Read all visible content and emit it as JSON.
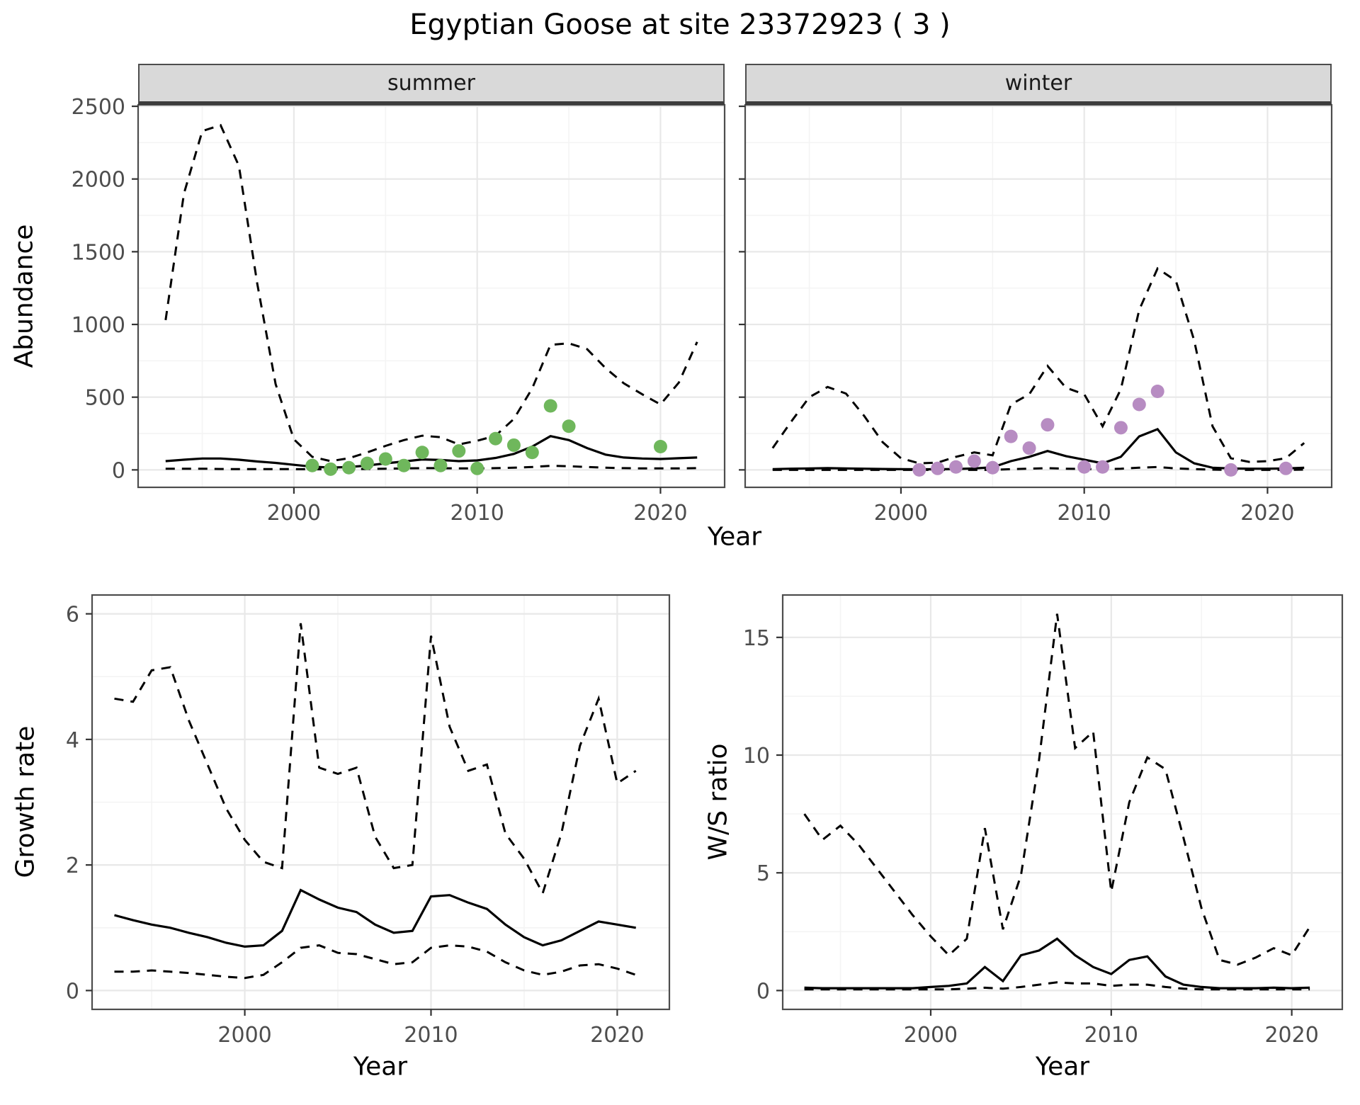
{
  "title": "Egyptian Goose at site 23372923 ( 3 )",
  "colors": {
    "summer_points": "#6fb75c",
    "winter_points": "#b78cc2",
    "line": "#000000",
    "strip_bg": "#d9d9d9",
    "panel_border": "#4d4d4d",
    "grid_major": "#e8e8e8",
    "grid_minor": "#f4f4f4",
    "axis_text": "#4d4d4d"
  },
  "chart_data": [
    {
      "id": "abundance",
      "type": "line",
      "ylabel": "Abundance",
      "xlabel": "Year",
      "xlim": [
        1991.5,
        2023.5
      ],
      "ylim": [
        -120,
        2510
      ],
      "xticks": [
        2000,
        2010,
        2020
      ],
      "yticks": [
        0,
        500,
        1000,
        1500,
        2000,
        2500
      ],
      "legend": "none",
      "facets": [
        {
          "label": "summer",
          "point_color_key": "summer_points",
          "years": [
            1993,
            1994,
            1995,
            1996,
            1997,
            1998,
            1999,
            2000,
            2001,
            2002,
            2003,
            2004,
            2005,
            2006,
            2007,
            2008,
            2009,
            2010,
            2011,
            2012,
            2013,
            2014,
            2015,
            2016,
            2017,
            2018,
            2019,
            2020,
            2021,
            2022
          ],
          "upper": [
            1030,
            1900,
            2330,
            2370,
            2090,
            1280,
            590,
            210,
            90,
            60,
            80,
            120,
            165,
            205,
            235,
            225,
            175,
            200,
            235,
            350,
            560,
            860,
            870,
            830,
            700,
            595,
            520,
            450,
            600,
            880
          ],
          "mean": [
            60,
            70,
            78,
            78,
            70,
            58,
            48,
            35,
            22,
            16,
            20,
            30,
            45,
            58,
            72,
            68,
            60,
            65,
            82,
            110,
            160,
            232,
            205,
            150,
            105,
            85,
            78,
            75,
            80,
            85
          ],
          "lower": [
            8,
            8,
            8,
            6,
            5,
            5,
            5,
            5,
            4,
            4,
            5,
            6,
            8,
            10,
            12,
            12,
            10,
            10,
            12,
            15,
            20,
            28,
            25,
            20,
            15,
            12,
            10,
            10,
            10,
            12
          ],
          "obs_years": [
            2001,
            2002,
            2003,
            2004,
            2005,
            2006,
            2007,
            2008,
            2009,
            2010,
            2011,
            2012,
            2013,
            2014,
            2015,
            2020
          ],
          "obs_values": [
            30,
            5,
            15,
            45,
            75,
            30,
            120,
            30,
            130,
            10,
            215,
            170,
            120,
            440,
            300,
            160
          ]
        },
        {
          "label": "winter",
          "point_color_key": "winter_points",
          "years": [
            1993,
            1994,
            1995,
            1996,
            1997,
            1998,
            1999,
            2000,
            2001,
            2002,
            2003,
            2004,
            2005,
            2006,
            2007,
            2008,
            2009,
            2010,
            2011,
            2012,
            2013,
            2014,
            2015,
            2016,
            2017,
            2018,
            2019,
            2020,
            2021,
            2022
          ],
          "upper": [
            150,
            330,
            500,
            570,
            525,
            370,
            190,
            80,
            45,
            50,
            90,
            120,
            100,
            450,
            520,
            715,
            565,
            520,
            300,
            555,
            1100,
            1385,
            1300,
            890,
            300,
            80,
            55,
            60,
            80,
            185
          ],
          "mean": [
            5,
            8,
            10,
            12,
            10,
            8,
            6,
            5,
            4,
            4,
            6,
            10,
            18,
            60,
            90,
            130,
            95,
            70,
            45,
            90,
            230,
            280,
            120,
            45,
            15,
            10,
            8,
            8,
            10,
            15
          ],
          "lower": [
            0,
            0,
            0,
            0,
            0,
            0,
            0,
            0,
            0,
            0,
            0,
            0,
            0,
            5,
            8,
            12,
            8,
            6,
            4,
            8,
            15,
            20,
            10,
            5,
            2,
            0,
            0,
            0,
            0,
            2
          ],
          "obs_years": [
            2001,
            2002,
            2003,
            2004,
            2005,
            2006,
            2007,
            2008,
            2010,
            2011,
            2012,
            2013,
            2014,
            2018,
            2021
          ],
          "obs_values": [
            0,
            10,
            20,
            60,
            15,
            230,
            150,
            310,
            20,
            20,
            290,
            450,
            540,
            0,
            10
          ]
        }
      ]
    },
    {
      "id": "growth_rate",
      "type": "line",
      "ylabel": "Growth rate",
      "xlabel": "Year",
      "xlim": [
        1991.8,
        2022.8
      ],
      "ylim": [
        -0.3,
        6.3
      ],
      "xticks": [
        2000,
        2010,
        2020
      ],
      "yticks": [
        0,
        2,
        4,
        6
      ],
      "years": [
        1993,
        1994,
        1995,
        1996,
        1997,
        1998,
        1999,
        2000,
        2001,
        2002,
        2003,
        2004,
        2005,
        2006,
        2007,
        2008,
        2009,
        2010,
        2011,
        2012,
        2013,
        2014,
        2015,
        2016,
        2017,
        2018,
        2019,
        2020,
        2021
      ],
      "upper": [
        4.65,
        4.6,
        5.1,
        5.15,
        4.3,
        3.6,
        2.9,
        2.4,
        2.05,
        1.95,
        5.85,
        3.55,
        3.45,
        3.55,
        2.45,
        1.95,
        2.0,
        5.65,
        4.2,
        3.5,
        3.6,
        2.5,
        2.1,
        1.55,
        2.5,
        3.9,
        4.65,
        3.3,
        3.5
      ],
      "mean": [
        1.2,
        1.12,
        1.05,
        1.0,
        0.92,
        0.85,
        0.76,
        0.7,
        0.72,
        0.95,
        1.6,
        1.45,
        1.32,
        1.25,
        1.05,
        0.92,
        0.95,
        1.5,
        1.52,
        1.4,
        1.3,
        1.05,
        0.85,
        0.72,
        0.8,
        0.95,
        1.1,
        1.05,
        1.0
      ],
      "lower": [
        0.3,
        0.3,
        0.32,
        0.3,
        0.28,
        0.25,
        0.22,
        0.2,
        0.25,
        0.45,
        0.68,
        0.72,
        0.6,
        0.58,
        0.5,
        0.42,
        0.45,
        0.68,
        0.72,
        0.7,
        0.62,
        0.45,
        0.32,
        0.25,
        0.3,
        0.4,
        0.42,
        0.35,
        0.25
      ]
    },
    {
      "id": "ws_ratio",
      "type": "line",
      "ylabel": "W/S ratio",
      "xlabel": "Year",
      "xlim": [
        1991.8,
        2022.8
      ],
      "ylim": [
        -0.8,
        16.8
      ],
      "xticks": [
        2000,
        2010,
        2020
      ],
      "yticks": [
        0,
        5,
        10,
        15
      ],
      "years": [
        1993,
        1994,
        1995,
        1996,
        1997,
        1998,
        1999,
        2000,
        2001,
        2002,
        2003,
        2004,
        2005,
        2006,
        2007,
        2008,
        2009,
        2010,
        2011,
        2012,
        2013,
        2014,
        2015,
        2016,
        2017,
        2018,
        2019,
        2020,
        2021
      ],
      "upper": [
        7.5,
        6.4,
        7.0,
        6.2,
        5.2,
        4.2,
        3.2,
        2.3,
        1.5,
        2.2,
        6.9,
        2.6,
        4.9,
        9.8,
        16.0,
        10.3,
        11.0,
        4.2,
        8.0,
        9.9,
        9.4,
        6.5,
        3.5,
        1.3,
        1.1,
        1.4,
        1.8,
        1.5,
        2.7
      ],
      "mean": [
        0.12,
        0.1,
        0.1,
        0.1,
        0.1,
        0.1,
        0.1,
        0.15,
        0.2,
        0.3,
        1.0,
        0.4,
        1.5,
        1.7,
        2.2,
        1.5,
        1.0,
        0.7,
        1.3,
        1.45,
        0.6,
        0.25,
        0.15,
        0.1,
        0.1,
        0.1,
        0.12,
        0.1,
        0.12
      ],
      "lower": [
        0.05,
        0.05,
        0.05,
        0.05,
        0.05,
        0.05,
        0.05,
        0.05,
        0.05,
        0.08,
        0.12,
        0.08,
        0.15,
        0.25,
        0.35,
        0.3,
        0.3,
        0.2,
        0.25,
        0.25,
        0.15,
        0.08,
        0.05,
        0.05,
        0.05,
        0.05,
        0.05,
        0.05,
        0.05
      ]
    }
  ]
}
